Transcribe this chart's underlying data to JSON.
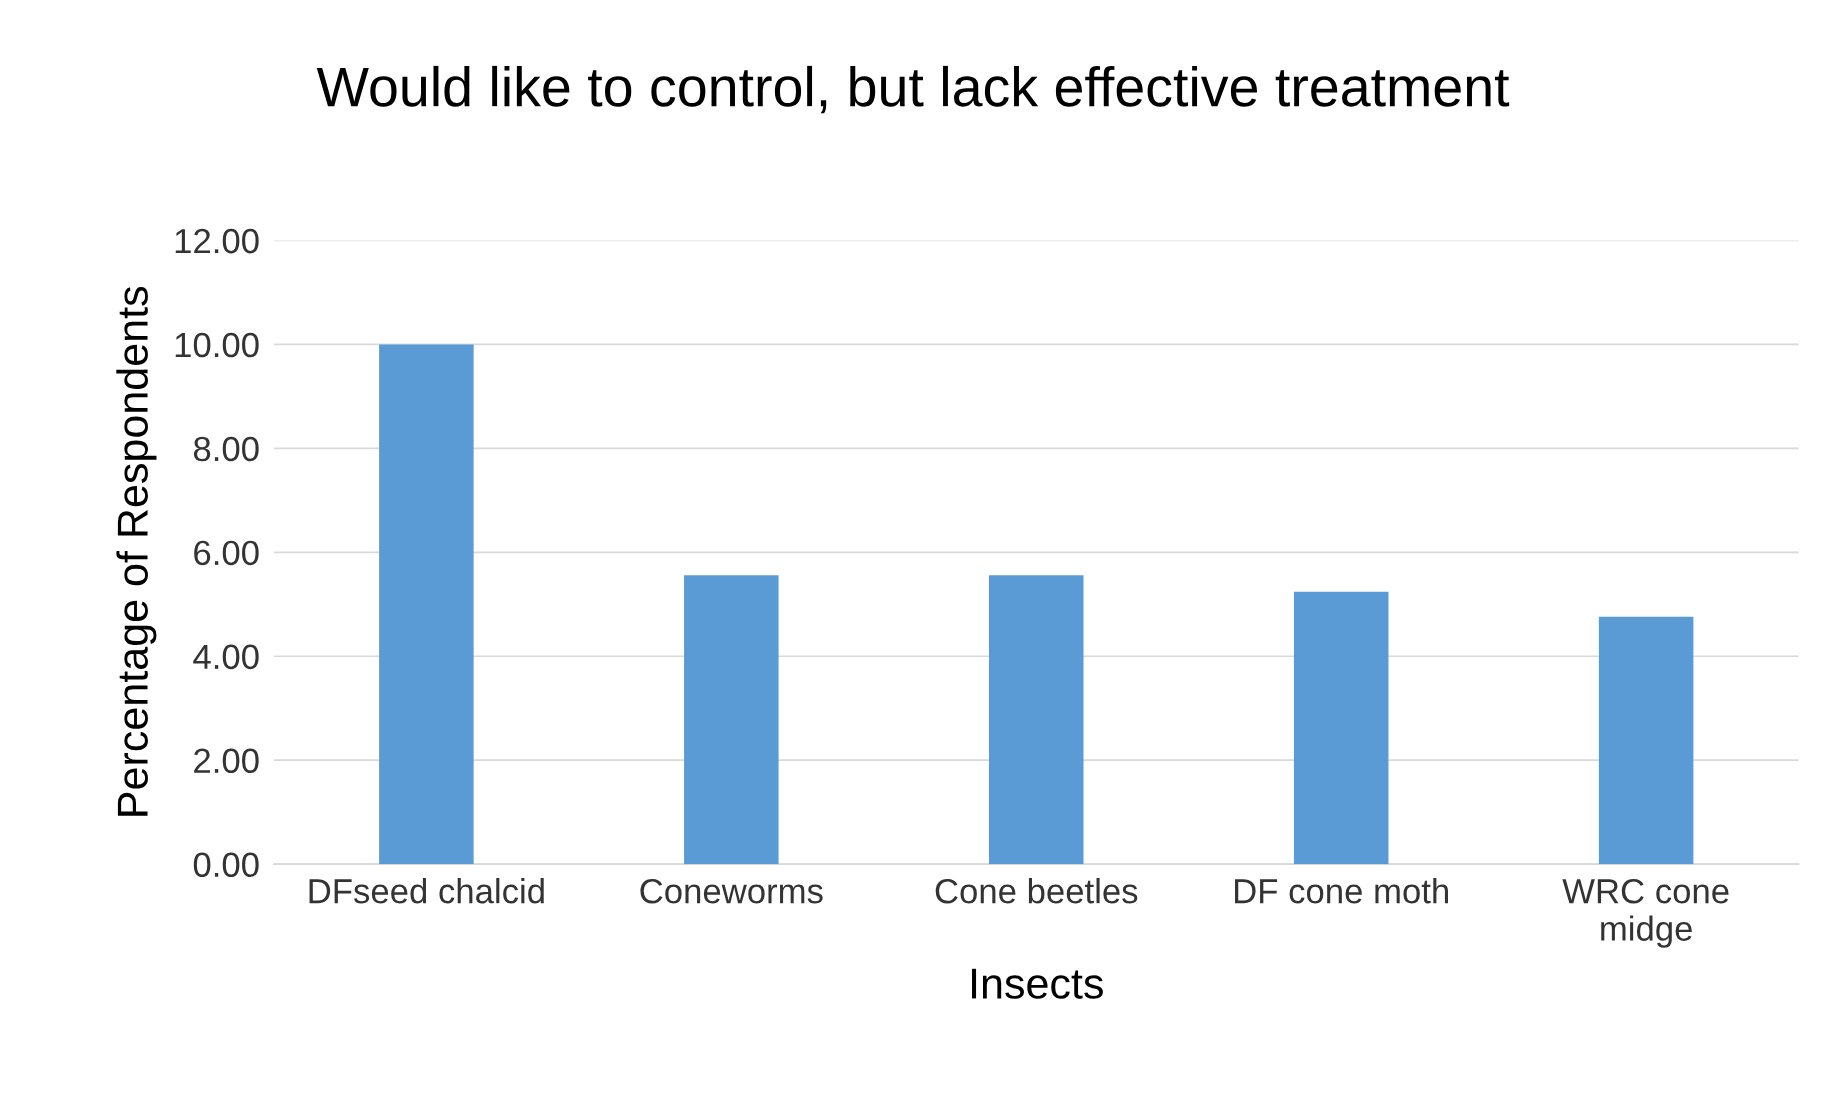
{
  "chart_data": {
    "type": "bar",
    "title": "Would like to control, but lack effective treatment",
    "xlabel": "Insects",
    "ylabel": "Percentage of Respondents",
    "categories": [
      "DFseed chalcid",
      "Coneworms",
      "Cone beetles",
      "DF cone moth",
      "WRC cone\nmidge"
    ],
    "values": [
      10.0,
      5.56,
      5.56,
      5.24,
      4.76
    ],
    "color": "#5b9bd5",
    "ylim": [
      0,
      12
    ],
    "yticks": [
      {
        "value": 0,
        "label": "0.00"
      },
      {
        "value": 2,
        "label": "2.00"
      },
      {
        "value": 4,
        "label": "4.00"
      },
      {
        "value": 6,
        "label": "6.00"
      },
      {
        "value": 8,
        "label": "8.00"
      },
      {
        "value": 10,
        "label": "10.00"
      },
      {
        "value": 12,
        "label": "12.00"
      }
    ],
    "grid": "y",
    "legend": false
  }
}
